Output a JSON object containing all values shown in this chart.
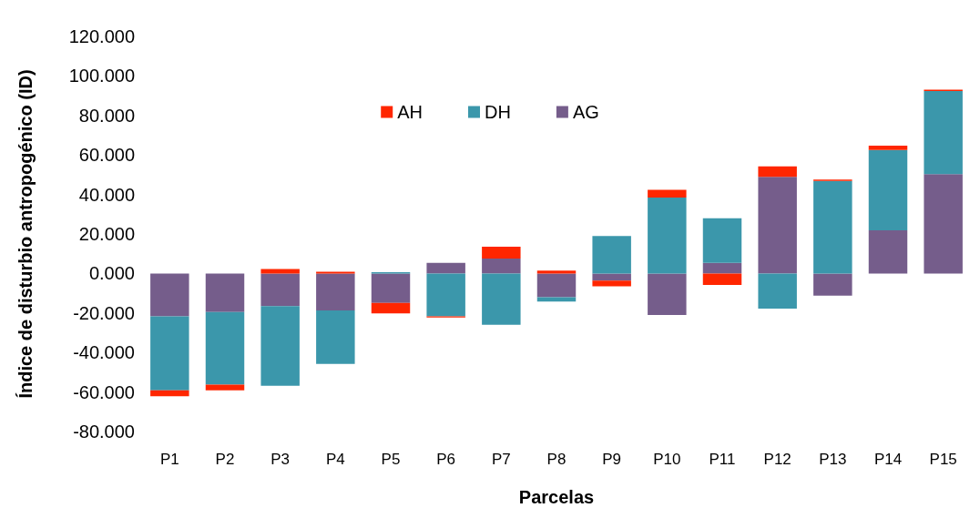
{
  "chart_data": {
    "type": "bar",
    "xlabel": "Parcelas",
    "ylabel": "Índice de disturbio antropogénico (ID)",
    "categories": [
      "P1",
      "P2",
      "P3",
      "P4",
      "P5",
      "P6",
      "P7",
      "P8",
      "P9",
      "P10",
      "P11",
      "P12",
      "P13",
      "P14",
      "P15"
    ],
    "stacked": true,
    "series": [
      {
        "name": "AG",
        "color": "#755d8b",
        "values": [
          -21.7,
          -19.5,
          -16.5,
          -18.7,
          -14.9,
          5.4,
          7.6,
          -12.0,
          -3.6,
          -21.0,
          5.4,
          48.9,
          -11.2,
          21.9,
          50.3
        ]
      },
      {
        "name": "DH",
        "color": "#3b97ab",
        "values": [
          -37.4,
          -36.8,
          -40.4,
          -27.1,
          0.7,
          -21.7,
          -26.0,
          -2.2,
          19.0,
          38.4,
          22.5,
          -17.8,
          46.8,
          40.6,
          42.0
        ]
      },
      {
        "name": "AH",
        "color": "#ff2600",
        "values": [
          -3.0,
          -2.9,
          2.3,
          0.9,
          -5.3,
          -0.6,
          6.0,
          1.5,
          -2.9,
          3.9,
          -5.8,
          5.3,
          0.7,
          2.2,
          0.7
        ]
      }
    ],
    "ylim": [
      -80,
      120
    ],
    "yticks": [
      {
        "value": -80,
        "label": "-80.000"
      },
      {
        "value": -60,
        "label": "-60.000"
      },
      {
        "value": -40,
        "label": "-40.000"
      },
      {
        "value": -20,
        "label": "-20.000"
      },
      {
        "value": 0,
        "label": "0.000"
      },
      {
        "value": 20,
        "label": "20.000"
      },
      {
        "value": 40,
        "label": "40.000"
      },
      {
        "value": 60,
        "label": "60.000"
      },
      {
        "value": 80,
        "label": "80.000"
      },
      {
        "value": 100,
        "label": "100.000"
      },
      {
        "value": 120,
        "label": "120.000"
      }
    ],
    "grid": false,
    "legend": "top"
  }
}
